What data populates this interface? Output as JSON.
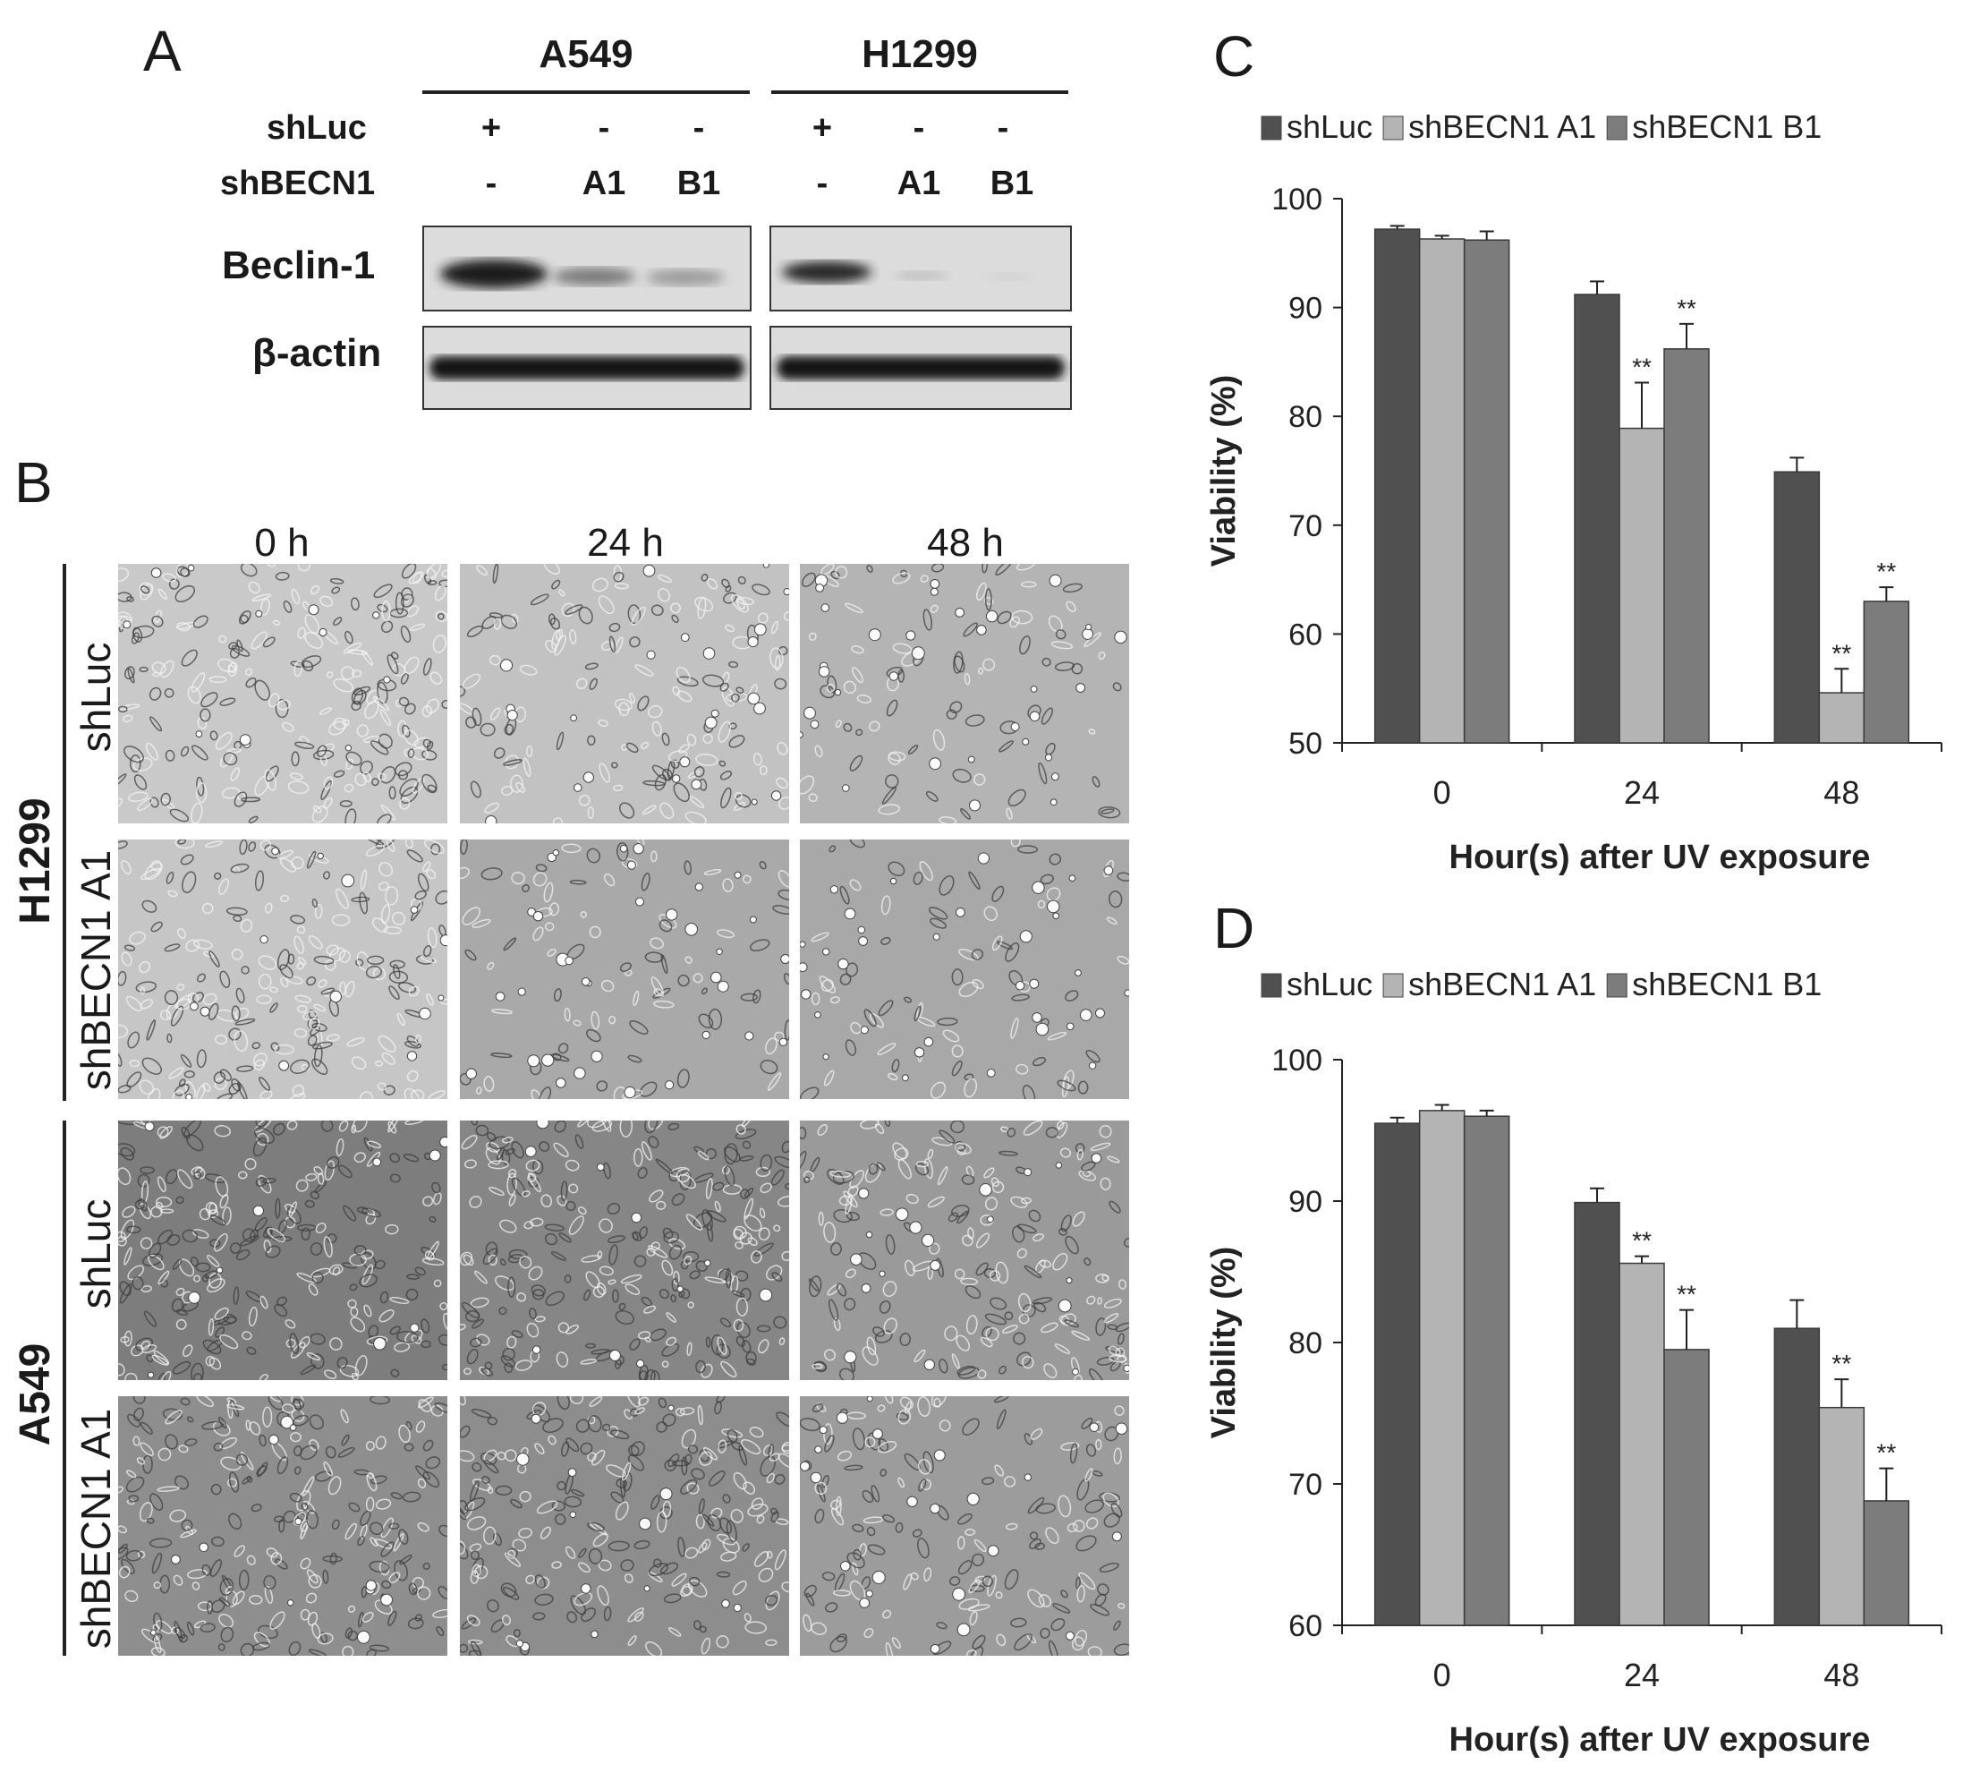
{
  "panels": {
    "A": "A",
    "B": "B",
    "C": "C",
    "D": "D"
  },
  "panel_a": {
    "groups": [
      "A549",
      "H1299"
    ],
    "row_labels": {
      "shluc": "shLuc",
      "shbecn1": "shBECN1"
    },
    "shluc_values": [
      "+",
      "-",
      "-",
      "+",
      "-",
      "-"
    ],
    "shbecn1_values": [
      "-",
      "A1",
      "B1",
      "-",
      "A1",
      "B1"
    ],
    "blots": [
      "Beclin-1",
      "β-actin"
    ]
  },
  "panel_b": {
    "timepoints": [
      "0 h",
      "24 h",
      "48 h"
    ],
    "cell_lines": [
      "H1299",
      "A549"
    ],
    "conditions": [
      "shLuc",
      "shBECN1 A1"
    ]
  },
  "chart_data": [
    {
      "type": "bar",
      "panel": "C",
      "categories": [
        "0",
        "24",
        "48"
      ],
      "series": [
        {
          "name": "shLuc",
          "values": [
            97.2,
            91.2,
            74.9
          ],
          "errors": [
            0.3,
            1.2,
            1.3
          ]
        },
        {
          "name": "shBECN1 A1",
          "values": [
            96.3,
            78.9,
            54.6
          ],
          "errors": [
            0.3,
            4.2,
            2.2
          ]
        },
        {
          "name": "shBECN1 B1",
          "values": [
            96.2,
            86.2,
            63.0
          ],
          "errors": [
            0.8,
            2.3,
            1.3
          ]
        }
      ],
      "significance": [
        [
          "",
          "",
          ""
        ],
        [
          "",
          "**",
          "**"
        ],
        [
          "",
          "**",
          "**"
        ]
      ],
      "xlabel": "Hour(s) after UV exposure",
      "ylabel": "Viability (%)",
      "ylim": [
        50,
        100
      ],
      "yticks": [
        50,
        60,
        70,
        80,
        90,
        100
      ],
      "legend": "top",
      "colors": [
        "#505050",
        "#b4b4b4",
        "#7c7c7c"
      ]
    },
    {
      "type": "bar",
      "panel": "D",
      "categories": [
        "0",
        "24",
        "48"
      ],
      "series": [
        {
          "name": "shLuc",
          "values": [
            95.5,
            89.9,
            81.0
          ],
          "errors": [
            0.4,
            1.0,
            2.0
          ]
        },
        {
          "name": "shBECN1 A1",
          "values": [
            96.4,
            85.6,
            75.4
          ],
          "errors": [
            0.4,
            0.5,
            2.0
          ]
        },
        {
          "name": "shBECN1 B1",
          "values": [
            96.0,
            79.5,
            68.8
          ],
          "errors": [
            0.4,
            2.8,
            2.3
          ]
        }
      ],
      "significance": [
        [
          "",
          "",
          ""
        ],
        [
          "",
          "**",
          "**"
        ],
        [
          "",
          "**",
          "**"
        ]
      ],
      "xlabel": "Hour(s) after UV exposure",
      "ylabel": "Viability (%)",
      "ylim": [
        60,
        100
      ],
      "yticks": [
        60,
        70,
        80,
        90,
        100
      ],
      "legend": "top",
      "colors": [
        "#505050",
        "#b4b4b4",
        "#7c7c7c"
      ]
    }
  ]
}
